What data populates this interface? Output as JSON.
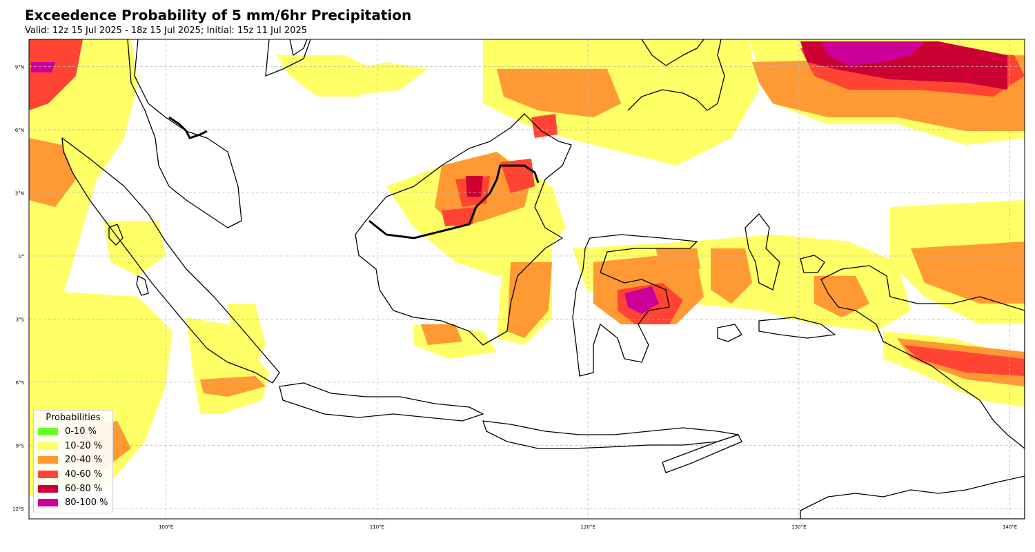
{
  "header": {
    "title": "Exceedence Probability of 5 mm/6hr Precipitation",
    "subtitle": "Valid: 12z 15 Jul 2025 - 18z 15 Jul 2025; Initial: 15z 11 Jul 2025"
  },
  "map": {
    "lon_range": [
      93.5,
      140.7
    ],
    "lat_range": [
      -12.5,
      10.3
    ],
    "lon_ticks": [
      {
        "value": 100,
        "label": "100°E"
      },
      {
        "value": 110,
        "label": "110°E"
      },
      {
        "value": 120,
        "label": "120°E"
      },
      {
        "value": 130,
        "label": "130°E"
      },
      {
        "value": 140,
        "label": "140°E"
      }
    ],
    "lat_ticks": [
      {
        "value": 9,
        "label": "9°N"
      },
      {
        "value": 6,
        "label": "6°N"
      },
      {
        "value": 3,
        "label": "3°N"
      },
      {
        "value": 0,
        "label": "0°"
      },
      {
        "value": -3,
        "label": "3°S"
      },
      {
        "value": -6,
        "label": "6°S"
      },
      {
        "value": -9,
        "label": "9°S"
      },
      {
        "value": -12,
        "label": "12°S"
      }
    ],
    "gridlines": "dashed",
    "coastline_color": "#000000"
  },
  "legend": {
    "title": "Probabilities",
    "position": "lower-left",
    "items": [
      {
        "label": "0-10 %",
        "color": "#66ff22"
      },
      {
        "label": "10-20 %",
        "color": "#ffff66"
      },
      {
        "label": "20-40 %",
        "color": "#ff9933"
      },
      {
        "label": "40-60 %",
        "color": "#ff4433"
      },
      {
        "label": "60-80 %",
        "color": "#cc0033"
      },
      {
        "label": "80-100 %",
        "color": "#cc0099"
      }
    ]
  }
}
